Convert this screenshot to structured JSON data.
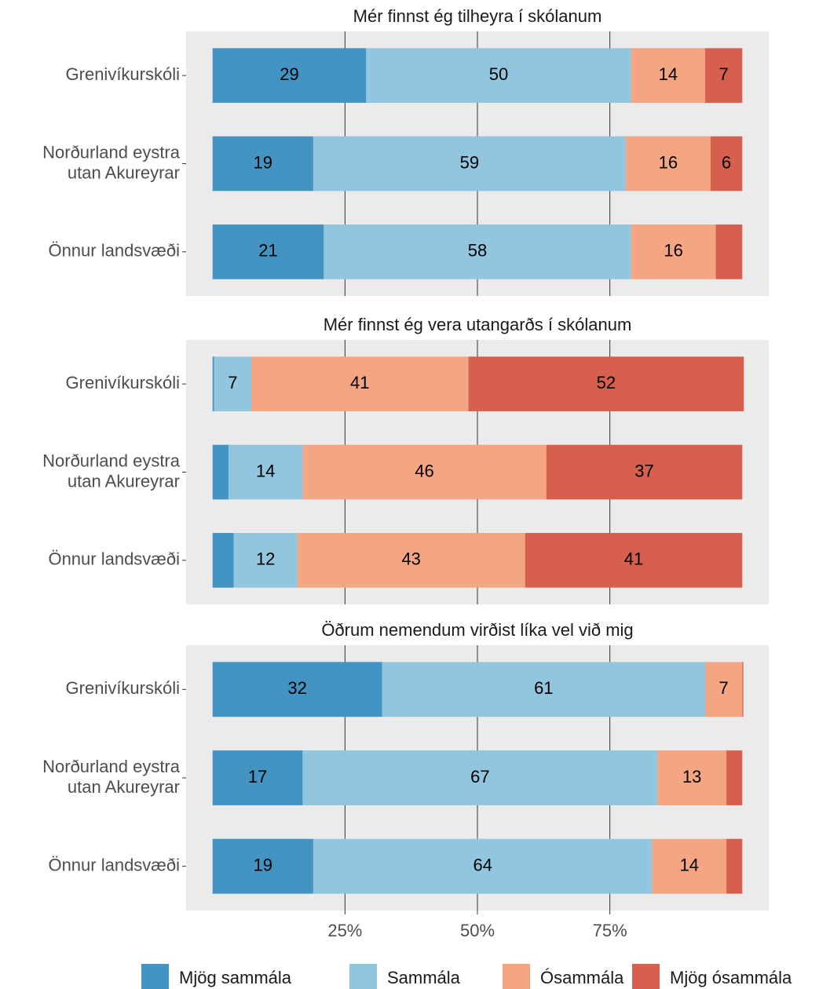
{
  "chart_data": [
    {
      "type": "bar",
      "title": "Mér finnst ég tilheyra í skólanum",
      "categories": [
        "Grenivíkurskóli",
        "Norðurland eystra\nutan Akureyrar",
        "Önnur landsvæði"
      ],
      "series": [
        {
          "name": "Mjög sammála",
          "color": "#4393c3",
          "values": [
            29,
            19,
            21
          ]
        },
        {
          "name": "Sammála",
          "color": "#92c5de",
          "values": [
            50,
            59,
            58
          ]
        },
        {
          "name": "Ósammála",
          "color": "#f4a582",
          "values": [
            14,
            16,
            16
          ]
        },
        {
          "name": "Mjög ósammála",
          "color": "#d6604d",
          "values": [
            7,
            6,
            5
          ]
        }
      ],
      "xlim": [
        -5,
        105
      ],
      "xticks": [
        25,
        50,
        75
      ],
      "grid": true
    },
    {
      "type": "bar",
      "title": "Mér finnst ég vera utangarðs í skólanum",
      "categories": [
        "Grenivíkurskóli",
        "Norðurland eystra\nutan Akureyrar",
        "Önnur landsvæði"
      ],
      "series": [
        {
          "color": "#4393c3",
          "values": [
            0.3,
            3,
            4
          ]
        },
        {
          "color": "#92c5de",
          "values": [
            7,
            14,
            12
          ]
        },
        {
          "color": "#f4a582",
          "values": [
            41,
            46,
            43
          ]
        },
        {
          "color": "#d6604d",
          "values": [
            52,
            37,
            41
          ]
        }
      ],
      "xlim": [
        -5,
        105
      ],
      "xticks": [
        25,
        50,
        75
      ],
      "grid": true
    },
    {
      "type": "bar",
      "title": "Öðrum nemendum virðist líka vel við mig",
      "categories": [
        "Grenivíkurskóli",
        "Norðurland eystra\nutan Akureyrar",
        "Önnur landsvæði"
      ],
      "series": [
        {
          "color": "#4393c3",
          "values": [
            32,
            17,
            19
          ]
        },
        {
          "color": "#92c5de",
          "values": [
            61,
            67,
            64
          ]
        },
        {
          "color": "#f4a582",
          "values": [
            7,
            13,
            14
          ]
        },
        {
          "color": "#d6604d",
          "values": [
            0.2,
            3,
            3
          ]
        }
      ],
      "xlim": [
        -5,
        105
      ],
      "xticks": [
        {
          "value": 25,
          "label": "25%"
        },
        {
          "value": 50,
          "label": "50%"
        },
        {
          "value": 75,
          "label": "75%"
        }
      ],
      "grid": true
    }
  ]
}
